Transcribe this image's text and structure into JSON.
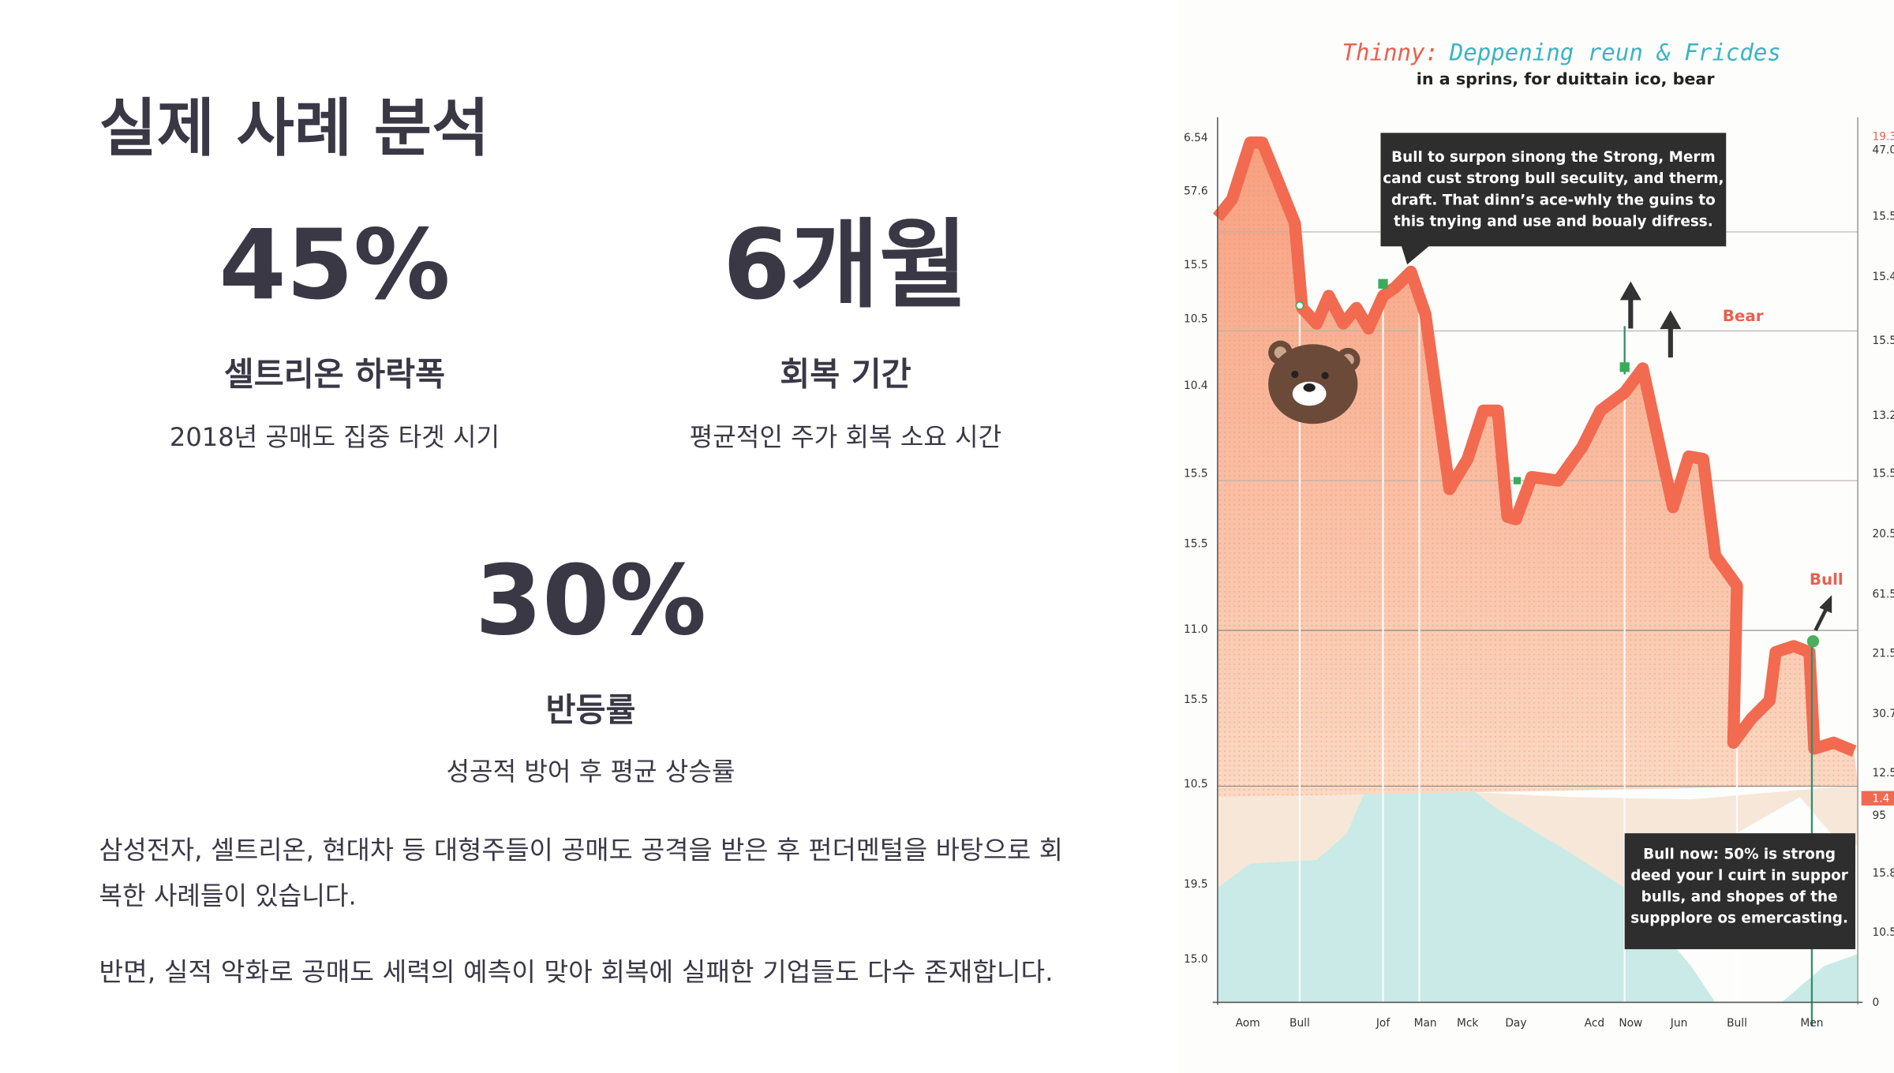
{
  "slide": {
    "title": "실제 사례 분석",
    "stats": [
      {
        "value": "45%",
        "label": "셀트리온 하락폭",
        "desc": "2018년 공매도 집중 타겟 시기"
      },
      {
        "value": "6개월",
        "label": "회복 기간",
        "desc": "평균적인 주가 회복 소요 시간"
      },
      {
        "value": "30%",
        "label": "반등률",
        "desc": "성공적 방어 후 평균 상승률"
      }
    ],
    "paragraphs": [
      [
        "삼성전자, 셀트리온, 현대차 등 대형주들이 공매도 공격을 받은 후 펀더멘털을 바탕으로 회",
        "복한 사례들이 있습니다."
      ],
      [
        "반면, 실적 악화로 공매도 세력의 예측이 맞아 회복에 실패한 기업들도 다수 존재합니다."
      ]
    ]
  },
  "figure": {
    "title_lead": "Thinny:",
    "title_rest": "Deppening reun & Fricdes",
    "subtitle": "in a sprins, for duittain ico, bear",
    "annotations": [
      [
        "Bull to surpon sinong the Strong, Merm",
        "cand cust strong bull seculity, and therm,",
        "draft. That dinn’s ace-whly the guins to",
        "this tnying and use and boualy difress."
      ],
      [
        "Bull  now: 50% is strong",
        "deed your l cuirt in suppor",
        "bulls, and shopes of the",
        "suppplore os emercasting."
      ]
    ],
    "tags": [
      "Bear",
      "Bull"
    ],
    "left_axis": [
      "6.54",
      "57.6",
      "15.5",
      "10.5",
      "10.4",
      "15.5",
      "15.5",
      "11.0",
      "15.5",
      "10.5",
      "19.5",
      "15.0"
    ],
    "right_axis": [
      "19.3",
      "47.0",
      "15.5",
      "15.4",
      "15.5",
      "13.2",
      "15.5",
      "20.5",
      "61.5",
      "21.5",
      "30.7",
      "12.5",
      "1.4",
      "95",
      "15.8",
      "10.5",
      "0"
    ],
    "x_labels": [
      "Aom",
      "Bull",
      "Jof",
      "Man",
      "Mck",
      "Day",
      "Acd",
      "Now",
      "Jun",
      "Bull",
      "Men"
    ]
  }
}
